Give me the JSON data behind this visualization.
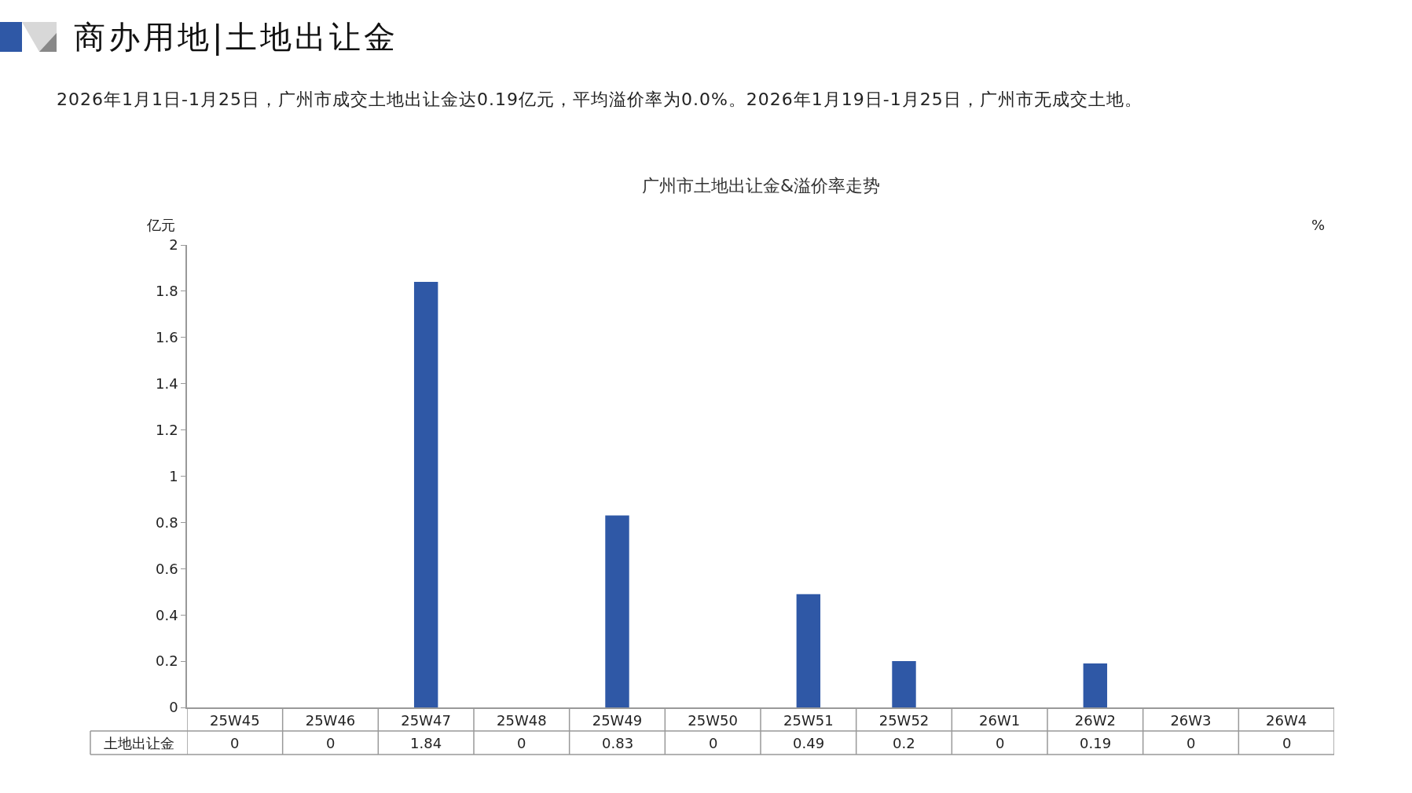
{
  "chart_data": {
    "type": "bar",
    "title": "商办用地|土地出让金",
    "subtitle": "2026年1月1日-1月25日，广州市成交土地出让金达0.19亿元，平均溢价率为0.0%。2026年1月19日-1月25日，广州市无成交土地。",
    "annotations": [
      "广州市土地出让金&溢价率走势"
    ],
    "ylabel": "亿元",
    "y2label": "%",
    "categories": [
      "25W45",
      "25W46",
      "25W47",
      "25W48",
      "25W49",
      "25W50",
      "25W51",
      "25W52",
      "26W1",
      "26W2",
      "26W3",
      "26W4"
    ],
    "series": [
      {
        "name": "土地出让金",
        "color": "#2f58a6",
        "values": [
          0,
          0,
          1.84,
          0,
          0.83,
          0,
          0.49,
          0.2,
          0,
          0.19,
          0,
          0
        ]
      }
    ],
    "ylim": [
      0,
      2
    ],
    "yticks": [
      0,
      0.2,
      0.4,
      0.6,
      0.8,
      1,
      1.2,
      1.4,
      1.6,
      1.8,
      2
    ],
    "data_labels": true
  }
}
